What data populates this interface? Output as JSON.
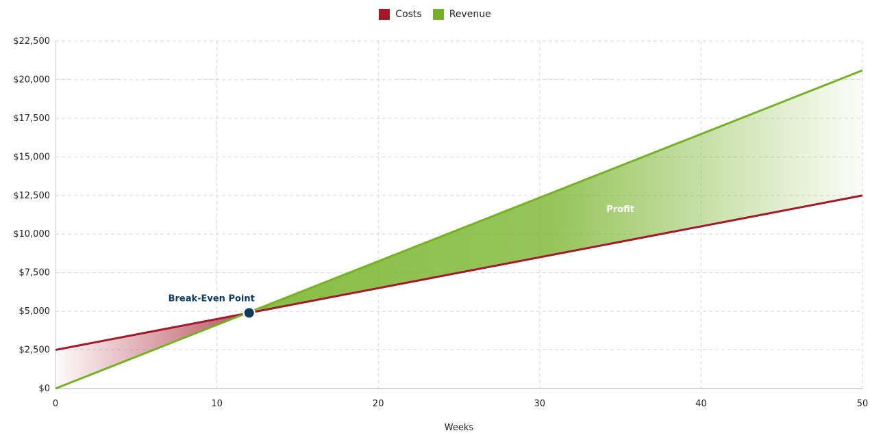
{
  "chart_data": {
    "type": "line",
    "xlabel": "Weeks",
    "ylabel": "",
    "xlim": [
      0,
      50
    ],
    "ylim": [
      0,
      22500
    ],
    "x_ticks": [
      0,
      10,
      20,
      30,
      40,
      50
    ],
    "y_ticks": [
      0,
      2500,
      5000,
      7500,
      10000,
      12500,
      15000,
      17500,
      20000,
      22500
    ],
    "x_tick_labels": [
      "0",
      "10",
      "20",
      "30",
      "40",
      "50"
    ],
    "y_tick_labels": [
      "$0",
      "$2,500",
      "$5,000",
      "$7,500",
      "$10,000",
      "$12,500",
      "$15,000",
      "$17,500",
      "$20,000",
      "$22,500"
    ],
    "grid": true,
    "legend_position": "top-center",
    "series": [
      {
        "name": "Costs",
        "color": "#a3192a",
        "x": [
          0,
          50
        ],
        "y": [
          2500,
          12500
        ]
      },
      {
        "name": "Revenue",
        "color": "#74b124",
        "x": [
          0,
          50
        ],
        "y": [
          0,
          20600
        ]
      }
    ],
    "annotations": [
      {
        "text": "Break-Even Point",
        "x": 12,
        "y": 4900,
        "marker_color": "#0e3a5c"
      },
      {
        "text": "Profit",
        "x": 35,
        "y": 11600
      }
    ]
  }
}
